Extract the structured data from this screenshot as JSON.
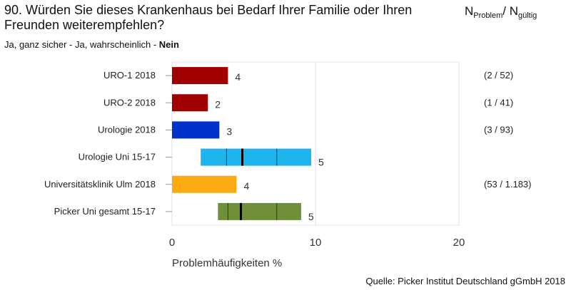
{
  "header": {
    "question": "90. Würden Sie dieses Krankenhaus bei Bedarf Ihrer Familie oder Ihren Freunden weiterempfehlen?",
    "n_label_main": "N",
    "n_label_problem": "Problem",
    "n_label_sep": "/ N",
    "n_label_valid": "gültig",
    "answer_options": "Ja, ganz sicher - Ja, wahrscheinlich - ",
    "answer_selected": "Nein"
  },
  "source": "Quelle: Picker Institut Deutschland gGmbH 2018",
  "chart_data": {
    "type": "bar",
    "orientation": "horizontal",
    "xlabel": "Problemhäufigkeiten %",
    "xlim": [
      0,
      20
    ],
    "xticks": [
      0,
      10,
      20
    ],
    "grid": true,
    "categories": [
      "URO-1 2018",
      "URO-2 2018",
      "Urologie 2018",
      "Urologie Uni 15-17",
      "Universitätsklinik Ulm 2018",
      "Picker Uni gesamt 15-17"
    ],
    "values": [
      4,
      2,
      3,
      5,
      4,
      5
    ],
    "value_labels": [
      "4",
      "2",
      "3",
      "5",
      "4",
      "5"
    ],
    "colors": [
      "#a00000",
      "#a00000",
      "#0033cc",
      "#1eb4ee",
      "#fcaa12",
      "#6f8f38"
    ],
    "n_labels": [
      "(2 / 52)",
      "(1 / 41)",
      "(3 / 93)",
      "",
      "(53 / 1.183)",
      ""
    ],
    "ranges": [
      null,
      null,
      null,
      {
        "min": 2.0,
        "q1": 3.8,
        "median": 4.9,
        "q3": 7.3,
        "max": 9.7
      },
      null,
      {
        "min": 3.2,
        "q1": 3.9,
        "median": 4.8,
        "q3": 7.3,
        "max": 9.0
      }
    ],
    "bar_ends": [
      3.9,
      2.5,
      3.3,
      null,
      4.5,
      null
    ]
  }
}
